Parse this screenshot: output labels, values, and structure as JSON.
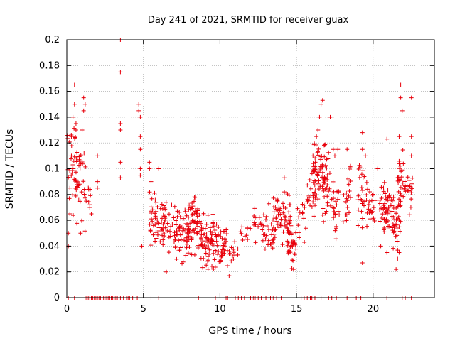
{
  "chart_data": {
    "type": "scatter",
    "title": "Day 241 of 2021, SRMTID for receiver guax",
    "xlabel": "GPS time / hours",
    "ylabel": "SRMTID / TECUs",
    "xlim": [
      0,
      24
    ],
    "ylim": [
      0,
      0.2
    ],
    "xticks": [
      0,
      5,
      10,
      15,
      20
    ],
    "xtick_labels": [
      "0",
      "5",
      "10",
      "15",
      "20"
    ],
    "yticks": [
      0,
      0.02,
      0.04,
      0.06,
      0.08,
      0.1,
      0.12,
      0.14,
      0.16,
      0.18,
      0.2
    ],
    "ytick_labels": [
      "0",
      "0.02",
      "0.04",
      "0.06",
      "0.08",
      "0.1",
      "0.12",
      "0.14",
      "0.16",
      "0.18",
      "0.2"
    ],
    "grid": true,
    "marker": "+",
    "series": [
      {
        "name": "SRMTID",
        "color": "#e8000b",
        "outlier_points": [
          {
            "x": 0.1,
            "y": 0.04
          },
          {
            "x": 0.1,
            "y": 0.05
          },
          {
            "x": 0.2,
            "y": 0.065
          },
          {
            "x": 0.2,
            "y": 0.085
          },
          {
            "x": 0.3,
            "y": 0.11
          },
          {
            "x": 0.3,
            "y": 0.125
          },
          {
            "x": 0.4,
            "y": 0.14
          },
          {
            "x": 0.4,
            "y": 0.1
          },
          {
            "x": 0.5,
            "y": 0.165
          },
          {
            "x": 0.5,
            "y": 0.15
          },
          {
            "x": 0.6,
            "y": 0.135
          },
          {
            "x": 0.6,
            "y": 0.13
          },
          {
            "x": 0.9,
            "y": 0.05
          },
          {
            "x": 1.0,
            "y": 0.13
          },
          {
            "x": 1.1,
            "y": 0.145
          },
          {
            "x": 1.1,
            "y": 0.155
          },
          {
            "x": 1.2,
            "y": 0.15
          },
          {
            "x": 1.5,
            "y": 0.07
          },
          {
            "x": 1.6,
            "y": 0.065
          },
          {
            "x": 2.0,
            "y": 0.09
          },
          {
            "x": 2.0,
            "y": 0.085
          },
          {
            "x": 2.0,
            "y": 0.11
          },
          {
            "x": 3.5,
            "y": 0.2
          },
          {
            "x": 3.5,
            "y": 0.175
          },
          {
            "x": 3.5,
            "y": 0.135
          },
          {
            "x": 3.5,
            "y": 0.13
          },
          {
            "x": 3.5,
            "y": 0.105
          },
          {
            "x": 3.5,
            "y": 0.093
          },
          {
            "x": 4.7,
            "y": 0.15
          },
          {
            "x": 4.7,
            "y": 0.145
          },
          {
            "x": 4.8,
            "y": 0.14
          },
          {
            "x": 4.8,
            "y": 0.125
          },
          {
            "x": 4.8,
            "y": 0.115
          },
          {
            "x": 4.8,
            "y": 0.1
          },
          {
            "x": 4.8,
            "y": 0.095
          },
          {
            "x": 4.9,
            "y": 0.04
          },
          {
            "x": 5.4,
            "y": 0.105
          },
          {
            "x": 5.4,
            "y": 0.1
          },
          {
            "x": 5.5,
            "y": 0.09
          },
          {
            "x": 6.0,
            "y": 0.1
          },
          {
            "x": 6.5,
            "y": 0.02
          },
          {
            "x": 10.6,
            "y": 0.017
          },
          {
            "x": 14.2,
            "y": 0.093
          },
          {
            "x": 14.8,
            "y": 0.022
          },
          {
            "x": 16.3,
            "y": 0.125
          },
          {
            "x": 16.4,
            "y": 0.13
          },
          {
            "x": 16.5,
            "y": 0.14
          },
          {
            "x": 16.6,
            "y": 0.15
          },
          {
            "x": 16.7,
            "y": 0.153
          },
          {
            "x": 17.2,
            "y": 0.14
          },
          {
            "x": 17.4,
            "y": 0.115
          },
          {
            "x": 17.5,
            "y": 0.11
          },
          {
            "x": 17.7,
            "y": 0.115
          },
          {
            "x": 18.3,
            "y": 0.115
          },
          {
            "x": 19.3,
            "y": 0.128
          },
          {
            "x": 19.3,
            "y": 0.115
          },
          {
            "x": 19.3,
            "y": 0.027
          },
          {
            "x": 19.5,
            "y": 0.11
          },
          {
            "x": 20.3,
            "y": 0.1
          },
          {
            "x": 20.5,
            "y": 0.04
          },
          {
            "x": 20.9,
            "y": 0.123
          },
          {
            "x": 20.9,
            "y": 0.035
          },
          {
            "x": 21.8,
            "y": 0.165
          },
          {
            "x": 21.8,
            "y": 0.155
          },
          {
            "x": 21.9,
            "y": 0.145
          },
          {
            "x": 21.7,
            "y": 0.125
          },
          {
            "x": 21.5,
            "y": 0.022
          },
          {
            "x": 21.6,
            "y": 0.03
          },
          {
            "x": 22.5,
            "y": 0.155
          },
          {
            "x": 22.5,
            "y": 0.125
          },
          {
            "x": 22.5,
            "y": 0.11
          }
        ],
        "clusters": [
          {
            "x_range": [
              0.05,
              0.7
            ],
            "y_range": [
              0.06,
              0.14
            ],
            "count": 36,
            "seed": 11
          },
          {
            "x_range": [
              0.6,
              1.3
            ],
            "y_range": [
              0.05,
              0.12
            ],
            "count": 28,
            "seed": 12
          },
          {
            "x_range": [
              1.4,
              1.6
            ],
            "y_range": [
              0.065,
              0.095
            ],
            "count": 6,
            "seed": 13
          },
          {
            "x_range": [
              5.4,
              6.0
            ],
            "y_range": [
              0.035,
              0.09
            ],
            "count": 30,
            "seed": 14
          },
          {
            "x_range": [
              6.0,
              7.0
            ],
            "y_range": [
              0.03,
              0.08
            ],
            "count": 40,
            "seed": 15
          },
          {
            "x_range": [
              7.0,
              8.0
            ],
            "y_range": [
              0.025,
              0.075
            ],
            "count": 55,
            "seed": 16
          },
          {
            "x_range": [
              7.8,
              8.7
            ],
            "y_range": [
              0.03,
              0.085
            ],
            "count": 60,
            "seed": 17
          },
          {
            "x_range": [
              8.7,
              9.6
            ],
            "y_range": [
              0.02,
              0.07
            ],
            "count": 70,
            "seed": 18
          },
          {
            "x_range": [
              9.6,
              10.5
            ],
            "y_range": [
              0.022,
              0.06
            ],
            "count": 50,
            "seed": 19
          },
          {
            "x_range": [
              10.6,
              11.2
            ],
            "y_range": [
              0.02,
              0.045
            ],
            "count": 14,
            "seed": 20
          },
          {
            "x_range": [
              11.3,
              12.0
            ],
            "y_range": [
              0.035,
              0.06
            ],
            "count": 10,
            "seed": 21
          },
          {
            "x_range": [
              12.2,
              12.8
            ],
            "y_range": [
              0.04,
              0.075
            ],
            "count": 12,
            "seed": 22
          },
          {
            "x_range": [
              12.8,
              13.6
            ],
            "y_range": [
              0.03,
              0.08
            ],
            "count": 26,
            "seed": 23
          },
          {
            "x_range": [
              13.4,
              14.0
            ],
            "y_range": [
              0.04,
              0.09
            ],
            "count": 30,
            "seed": 24
          },
          {
            "x_range": [
              14.0,
              14.6
            ],
            "y_range": [
              0.035,
              0.085
            ],
            "count": 28,
            "seed": 25
          },
          {
            "x_range": [
              14.4,
              15.0
            ],
            "y_range": [
              0.022,
              0.06
            ],
            "count": 36,
            "seed": 26
          },
          {
            "x_range": [
              15.0,
              15.6
            ],
            "y_range": [
              0.04,
              0.08
            ],
            "count": 14,
            "seed": 27
          },
          {
            "x_range": [
              15.7,
              16.3
            ],
            "y_range": [
              0.06,
              0.1
            ],
            "count": 22,
            "seed": 28
          },
          {
            "x_range": [
              16.0,
              16.6
            ],
            "y_range": [
              0.07,
              0.125
            ],
            "count": 40,
            "seed": 29
          },
          {
            "x_range": [
              16.6,
              17.2
            ],
            "y_range": [
              0.055,
              0.13
            ],
            "count": 45,
            "seed": 30
          },
          {
            "x_range": [
              17.2,
              17.8
            ],
            "y_range": [
              0.04,
              0.1
            ],
            "count": 24,
            "seed": 31
          },
          {
            "x_range": [
              18.0,
              18.6
            ],
            "y_range": [
              0.05,
              0.11
            ],
            "count": 22,
            "seed": 32
          },
          {
            "x_range": [
              19.0,
              19.6
            ],
            "y_range": [
              0.05,
              0.11
            ],
            "count": 26,
            "seed": 33
          },
          {
            "x_range": [
              19.6,
              20.2
            ],
            "y_range": [
              0.045,
              0.095
            ],
            "count": 18,
            "seed": 34
          },
          {
            "x_range": [
              20.4,
              21.0
            ],
            "y_range": [
              0.04,
              0.1
            ],
            "count": 30,
            "seed": 35
          },
          {
            "x_range": [
              20.8,
              21.4
            ],
            "y_range": [
              0.05,
              0.09
            ],
            "count": 28,
            "seed": 36
          },
          {
            "x_range": [
              21.3,
              21.8
            ],
            "y_range": [
              0.025,
              0.085
            ],
            "count": 30,
            "seed": 37
          },
          {
            "x_range": [
              21.6,
              22.1
            ],
            "y_range": [
              0.06,
              0.12
            ],
            "count": 28,
            "seed": 38
          },
          {
            "x_range": [
              22.1,
              22.6
            ],
            "y_range": [
              0.06,
              0.11
            ],
            "count": 18,
            "seed": 39
          }
        ],
        "zero_points_x": [
          0.1,
          0.5,
          1.2,
          1.3,
          1.4,
          1.5,
          1.6,
          1.7,
          1.8,
          1.9,
          2.0,
          2.1,
          2.2,
          2.3,
          2.4,
          2.5,
          2.6,
          2.7,
          2.8,
          2.9,
          3.0,
          3.1,
          3.2,
          3.3,
          3.5,
          3.7,
          3.9,
          4.0,
          4.1,
          4.3,
          4.6,
          5.5,
          6.0,
          8.6,
          9.7,
          10.4,
          10.5,
          11.0,
          11.2,
          11.4,
          11.6,
          12.0,
          12.1,
          12.2,
          12.3,
          12.5,
          12.7,
          13.0,
          13.3,
          13.4,
          13.5,
          13.7,
          14.0,
          15.3,
          15.5,
          15.7,
          15.9,
          16.0,
          16.2,
          16.6,
          17.1,
          17.3,
          17.6,
          18.3,
          18.9,
          19.2,
          20.9,
          21.9,
          22.1,
          22.5
        ]
      }
    ]
  }
}
